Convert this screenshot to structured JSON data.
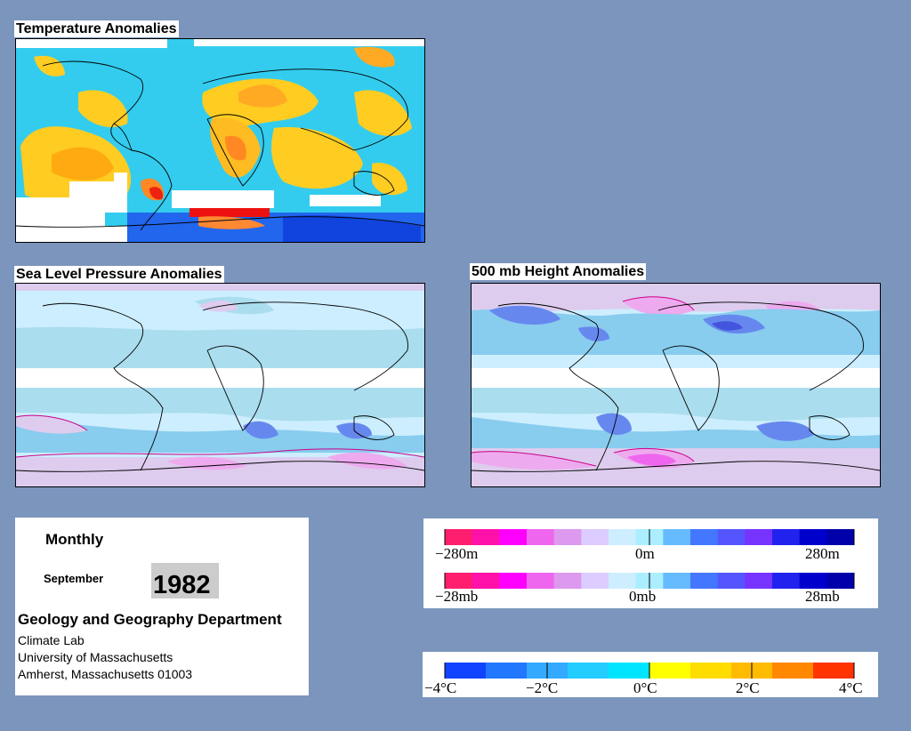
{
  "panels": {
    "temperature": {
      "title": "Temperature Anomalies"
    },
    "slp": {
      "title": "Sea Level Pressure Anomalies"
    },
    "height500": {
      "title": "500 mb Height Anomalies"
    }
  },
  "info": {
    "period": "Monthly",
    "month": "September",
    "year": "1982",
    "department": "Geology and Geography Department",
    "lines": [
      "Climate Lab",
      "University of Massachusetts",
      "Amherst, Massachusetts 01003"
    ]
  },
  "legend_height": {
    "colors": [
      "#ff1e6e",
      "#ff10a8",
      "#ff00ff",
      "#ee66ee",
      "#dd99ee",
      "#ddccff",
      "#cceeff",
      "#aaeeff",
      "#66bbff",
      "#4477ff",
      "#5555ff",
      "#7733ff",
      "#2222ee",
      "#0000cc",
      "#0000aa"
    ],
    "labels": [
      "−280m",
      "0m",
      "280m"
    ]
  },
  "legend_pressure": {
    "colors": [
      "#ff1e6e",
      "#ff10a8",
      "#ff00ff",
      "#ee66ee",
      "#dd99ee",
      "#ddccff",
      "#cceeff",
      "#aaeeff",
      "#66bbff",
      "#4477ff",
      "#5555ff",
      "#7733ff",
      "#2222ee",
      "#0000cc",
      "#0000aa"
    ],
    "labels": [
      "−28mb",
      "0mb",
      "28mb"
    ]
  },
  "legend_temperature": {
    "colors": [
      "#1144ff",
      "#2277ff",
      "#33aaff",
      "#22ccff",
      "#00e5ff",
      "#ffff00",
      "#ffdd00",
      "#ffbb00",
      "#ff8800",
      "#ff3300"
    ],
    "labels": [
      "−4°C",
      "−2°C",
      "0°C",
      "2°C",
      "4°C"
    ]
  }
}
